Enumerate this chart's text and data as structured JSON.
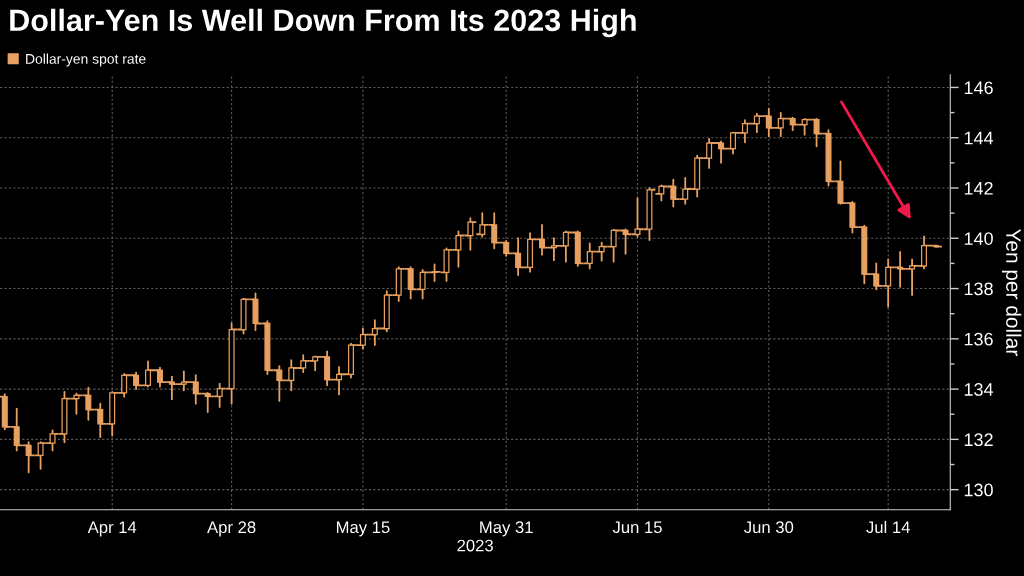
{
  "chart_data": {
    "type": "candlestick",
    "title": "Dollar-Yen Is Well Down From Its 2023 High",
    "xlabel": "2023",
    "ylabel": "Yen per dollar",
    "categories": [
      null,
      null,
      null,
      null,
      null,
      null,
      null,
      null,
      null,
      "Apr 14",
      null,
      null,
      null,
      null,
      null,
      null,
      null,
      null,
      null,
      "Apr 28",
      null,
      null,
      null,
      null,
      null,
      null,
      null,
      null,
      null,
      null,
      "May 15",
      null,
      null,
      null,
      null,
      null,
      null,
      null,
      null,
      null,
      null,
      null,
      "May 31",
      null,
      null,
      null,
      null,
      null,
      null,
      null,
      null,
      null,
      null,
      "Jun 15",
      null,
      null,
      null,
      null,
      null,
      null,
      null,
      null,
      null,
      null,
      "Jun 30",
      null,
      null,
      null,
      null,
      null,
      null,
      null,
      null,
      null,
      "Jul 14",
      null,
      null,
      null,
      null
    ],
    "series": [
      {
        "name": "Dollar-yen spot rate",
        "color": "#e8a060",
        "ohlc": [
          [
            133.7,
            133.8,
            132.4,
            132.5
          ],
          [
            132.5,
            133.22,
            131.56,
            131.76
          ],
          [
            131.76,
            131.89,
            130.69,
            131.36
          ],
          [
            131.36,
            131.89,
            130.83,
            131.85
          ],
          [
            131.85,
            132.36,
            131.56,
            132.22
          ],
          [
            132.22,
            133.89,
            131.89,
            133.62
          ],
          [
            133.62,
            133.82,
            133.02,
            133.75
          ],
          [
            133.75,
            134.06,
            132.78,
            133.18
          ],
          [
            133.18,
            133.42,
            132.09,
            132.62
          ],
          [
            132.62,
            133.89,
            132.16,
            133.85
          ],
          [
            133.85,
            134.6,
            133.7,
            134.55
          ],
          [
            134.55,
            134.65,
            134.0,
            134.15
          ],
          [
            134.15,
            135.1,
            134.1,
            134.75
          ],
          [
            134.75,
            134.85,
            134.1,
            134.28
          ],
          [
            134.28,
            134.5,
            133.6,
            134.2
          ],
          [
            134.2,
            134.7,
            133.95,
            134.28
          ],
          [
            134.28,
            134.55,
            133.42,
            133.82
          ],
          [
            133.82,
            133.85,
            133.09,
            133.71
          ],
          [
            133.71,
            134.22,
            133.29,
            134.02
          ],
          [
            134.02,
            136.61,
            133.42,
            136.37
          ],
          [
            136.37,
            137.6,
            136.21,
            137.57
          ],
          [
            137.57,
            137.81,
            136.35,
            136.61
          ],
          [
            136.61,
            136.7,
            134.6,
            134.75
          ],
          [
            134.75,
            134.91,
            133.53,
            134.35
          ],
          [
            134.35,
            135.15,
            133.95,
            134.84
          ],
          [
            134.84,
            135.35,
            134.68,
            135.12
          ],
          [
            135.12,
            135.3,
            134.75,
            135.28
          ],
          [
            135.28,
            135.5,
            134.15,
            134.38
          ],
          [
            134.38,
            134.88,
            133.79,
            134.59
          ],
          [
            134.59,
            135.81,
            134.46,
            135.75
          ],
          [
            135.75,
            136.41,
            135.61,
            136.17
          ],
          [
            136.17,
            136.74,
            135.75,
            136.41
          ],
          [
            136.41,
            137.9,
            136.3,
            137.74
          ],
          [
            137.74,
            138.85,
            137.5,
            138.78
          ],
          [
            138.78,
            138.85,
            137.6,
            137.97
          ],
          [
            137.97,
            138.74,
            137.6,
            138.64
          ],
          [
            138.64,
            138.96,
            138.3,
            138.66
          ],
          [
            138.64,
            139.6,
            138.3,
            139.54
          ],
          [
            139.54,
            140.27,
            138.87,
            140.11
          ],
          [
            140.11,
            140.8,
            139.54,
            140.64
          ],
          [
            140.16,
            141.0,
            140.07,
            140.53
          ],
          [
            140.53,
            141.0,
            139.6,
            139.83
          ],
          [
            139.83,
            139.9,
            139.3,
            139.4
          ],
          [
            139.4,
            140.0,
            138.54,
            138.84
          ],
          [
            138.84,
            140.2,
            138.67,
            139.96
          ],
          [
            139.96,
            140.53,
            139.34,
            139.63
          ],
          [
            139.63,
            140.0,
            139.13,
            139.7
          ],
          [
            139.7,
            140.27,
            139.07,
            140.23
          ],
          [
            140.23,
            140.27,
            138.9,
            139.0
          ],
          [
            139.0,
            139.8,
            138.8,
            139.47
          ],
          [
            139.47,
            139.83,
            139.11,
            139.67
          ],
          [
            139.67,
            140.33,
            139.07,
            140.31
          ],
          [
            140.31,
            140.35,
            139.38,
            140.16
          ],
          [
            140.16,
            141.6,
            140.07,
            140.36
          ],
          [
            140.36,
            142.0,
            139.93,
            141.93
          ],
          [
            141.77,
            142.1,
            141.5,
            142.06
          ],
          [
            142.06,
            142.33,
            141.26,
            141.56
          ],
          [
            141.56,
            142.4,
            141.37,
            141.96
          ],
          [
            141.96,
            143.29,
            141.66,
            143.19
          ],
          [
            143.19,
            143.95,
            142.8,
            143.79
          ],
          [
            143.79,
            143.85,
            143.0,
            143.57
          ],
          [
            143.57,
            144.2,
            143.37,
            144.19
          ],
          [
            144.19,
            144.7,
            143.82,
            144.56
          ],
          [
            144.56,
            144.96,
            144.22,
            144.86
          ],
          [
            144.86,
            145.15,
            144.06,
            144.39
          ],
          [
            144.39,
            144.99,
            144.06,
            144.76
          ],
          [
            144.76,
            144.8,
            144.3,
            144.52
          ],
          [
            144.52,
            144.75,
            144.12,
            144.72
          ],
          [
            144.72,
            144.75,
            143.66,
            144.16
          ],
          [
            144.16,
            144.3,
            142.1,
            142.26
          ],
          [
            142.26,
            143.06,
            141.37,
            141.4
          ],
          [
            141.4,
            141.45,
            140.23,
            140.44
          ],
          [
            140.44,
            140.5,
            138.21,
            138.57
          ],
          [
            138.57,
            139.0,
            137.97,
            138.11
          ],
          [
            138.11,
            139.16,
            137.28,
            138.84
          ],
          [
            138.84,
            139.46,
            138.07,
            138.78
          ],
          [
            138.78,
            139.16,
            137.74,
            138.9
          ],
          [
            138.9,
            140.07,
            138.8,
            139.71
          ],
          [
            139.71,
            139.72,
            139.65,
            139.67
          ]
        ]
      }
    ],
    "ylim": [
      129.2,
      146.5
    ],
    "yticks": [
      130,
      {
        "value": 131,
        "label": null
      },
      132,
      {
        "value": 133,
        "label": null
      },
      134,
      {
        "value": 135,
        "label": null
      },
      136,
      {
        "value": 137,
        "label": null
      },
      138,
      {
        "value": 139,
        "label": null
      },
      140,
      {
        "value": 141,
        "label": null
      },
      142,
      {
        "value": 143,
        "label": null
      },
      144,
      {
        "value": 145,
        "label": null
      },
      146
    ],
    "grid": true,
    "legend": "top left"
  }
}
